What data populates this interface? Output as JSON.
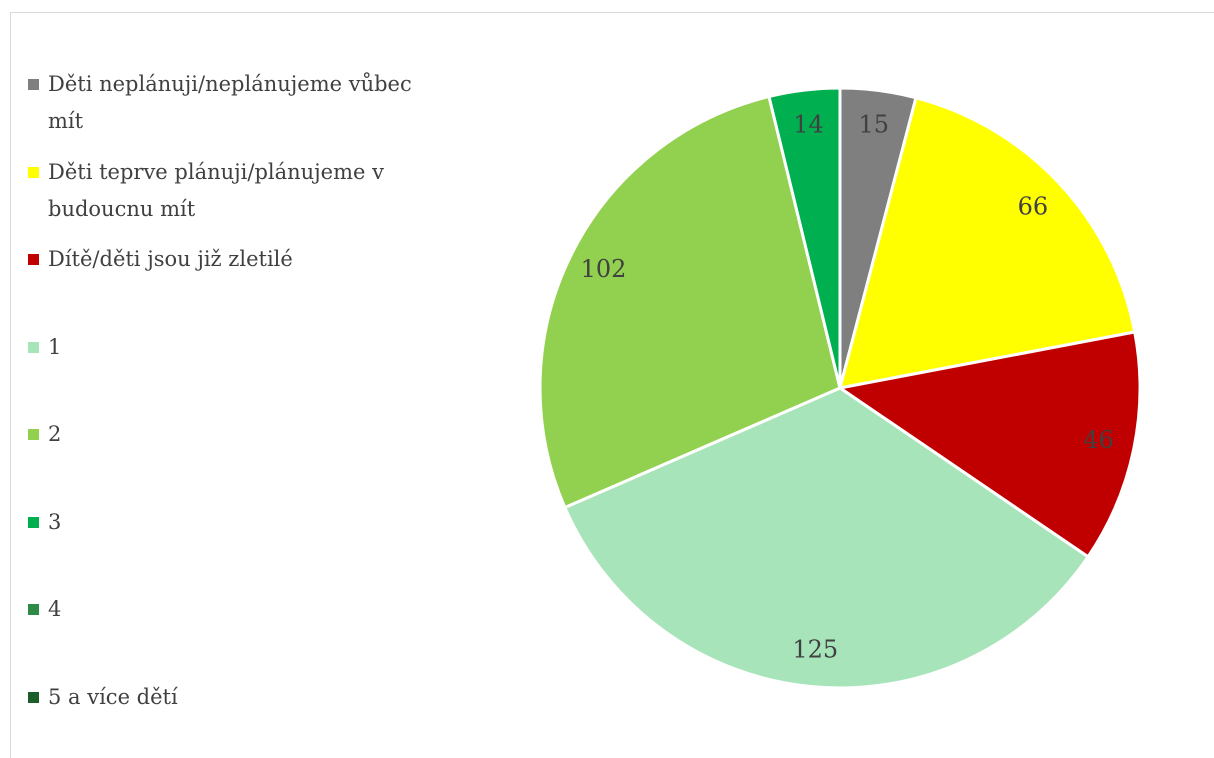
{
  "chart_data": {
    "type": "pie",
    "categories": [
      "Děti neplánuji/neplánujeme vůbec mít",
      "Děti teprve plánuji/plánujeme v budoucnu mít",
      "Dítě/děti jsou již zletilé",
      "1",
      "2",
      "3",
      "4",
      "5 a více dětí"
    ],
    "values": [
      15,
      66,
      46,
      125,
      102,
      14,
      0,
      0
    ],
    "colors": [
      "#7f7f7f",
      "#ffff00",
      "#c00000",
      "#a8e4b9",
      "#92d050",
      "#00b050",
      "#2e8b45",
      "#1b5e2a"
    ],
    "legend": "left"
  }
}
